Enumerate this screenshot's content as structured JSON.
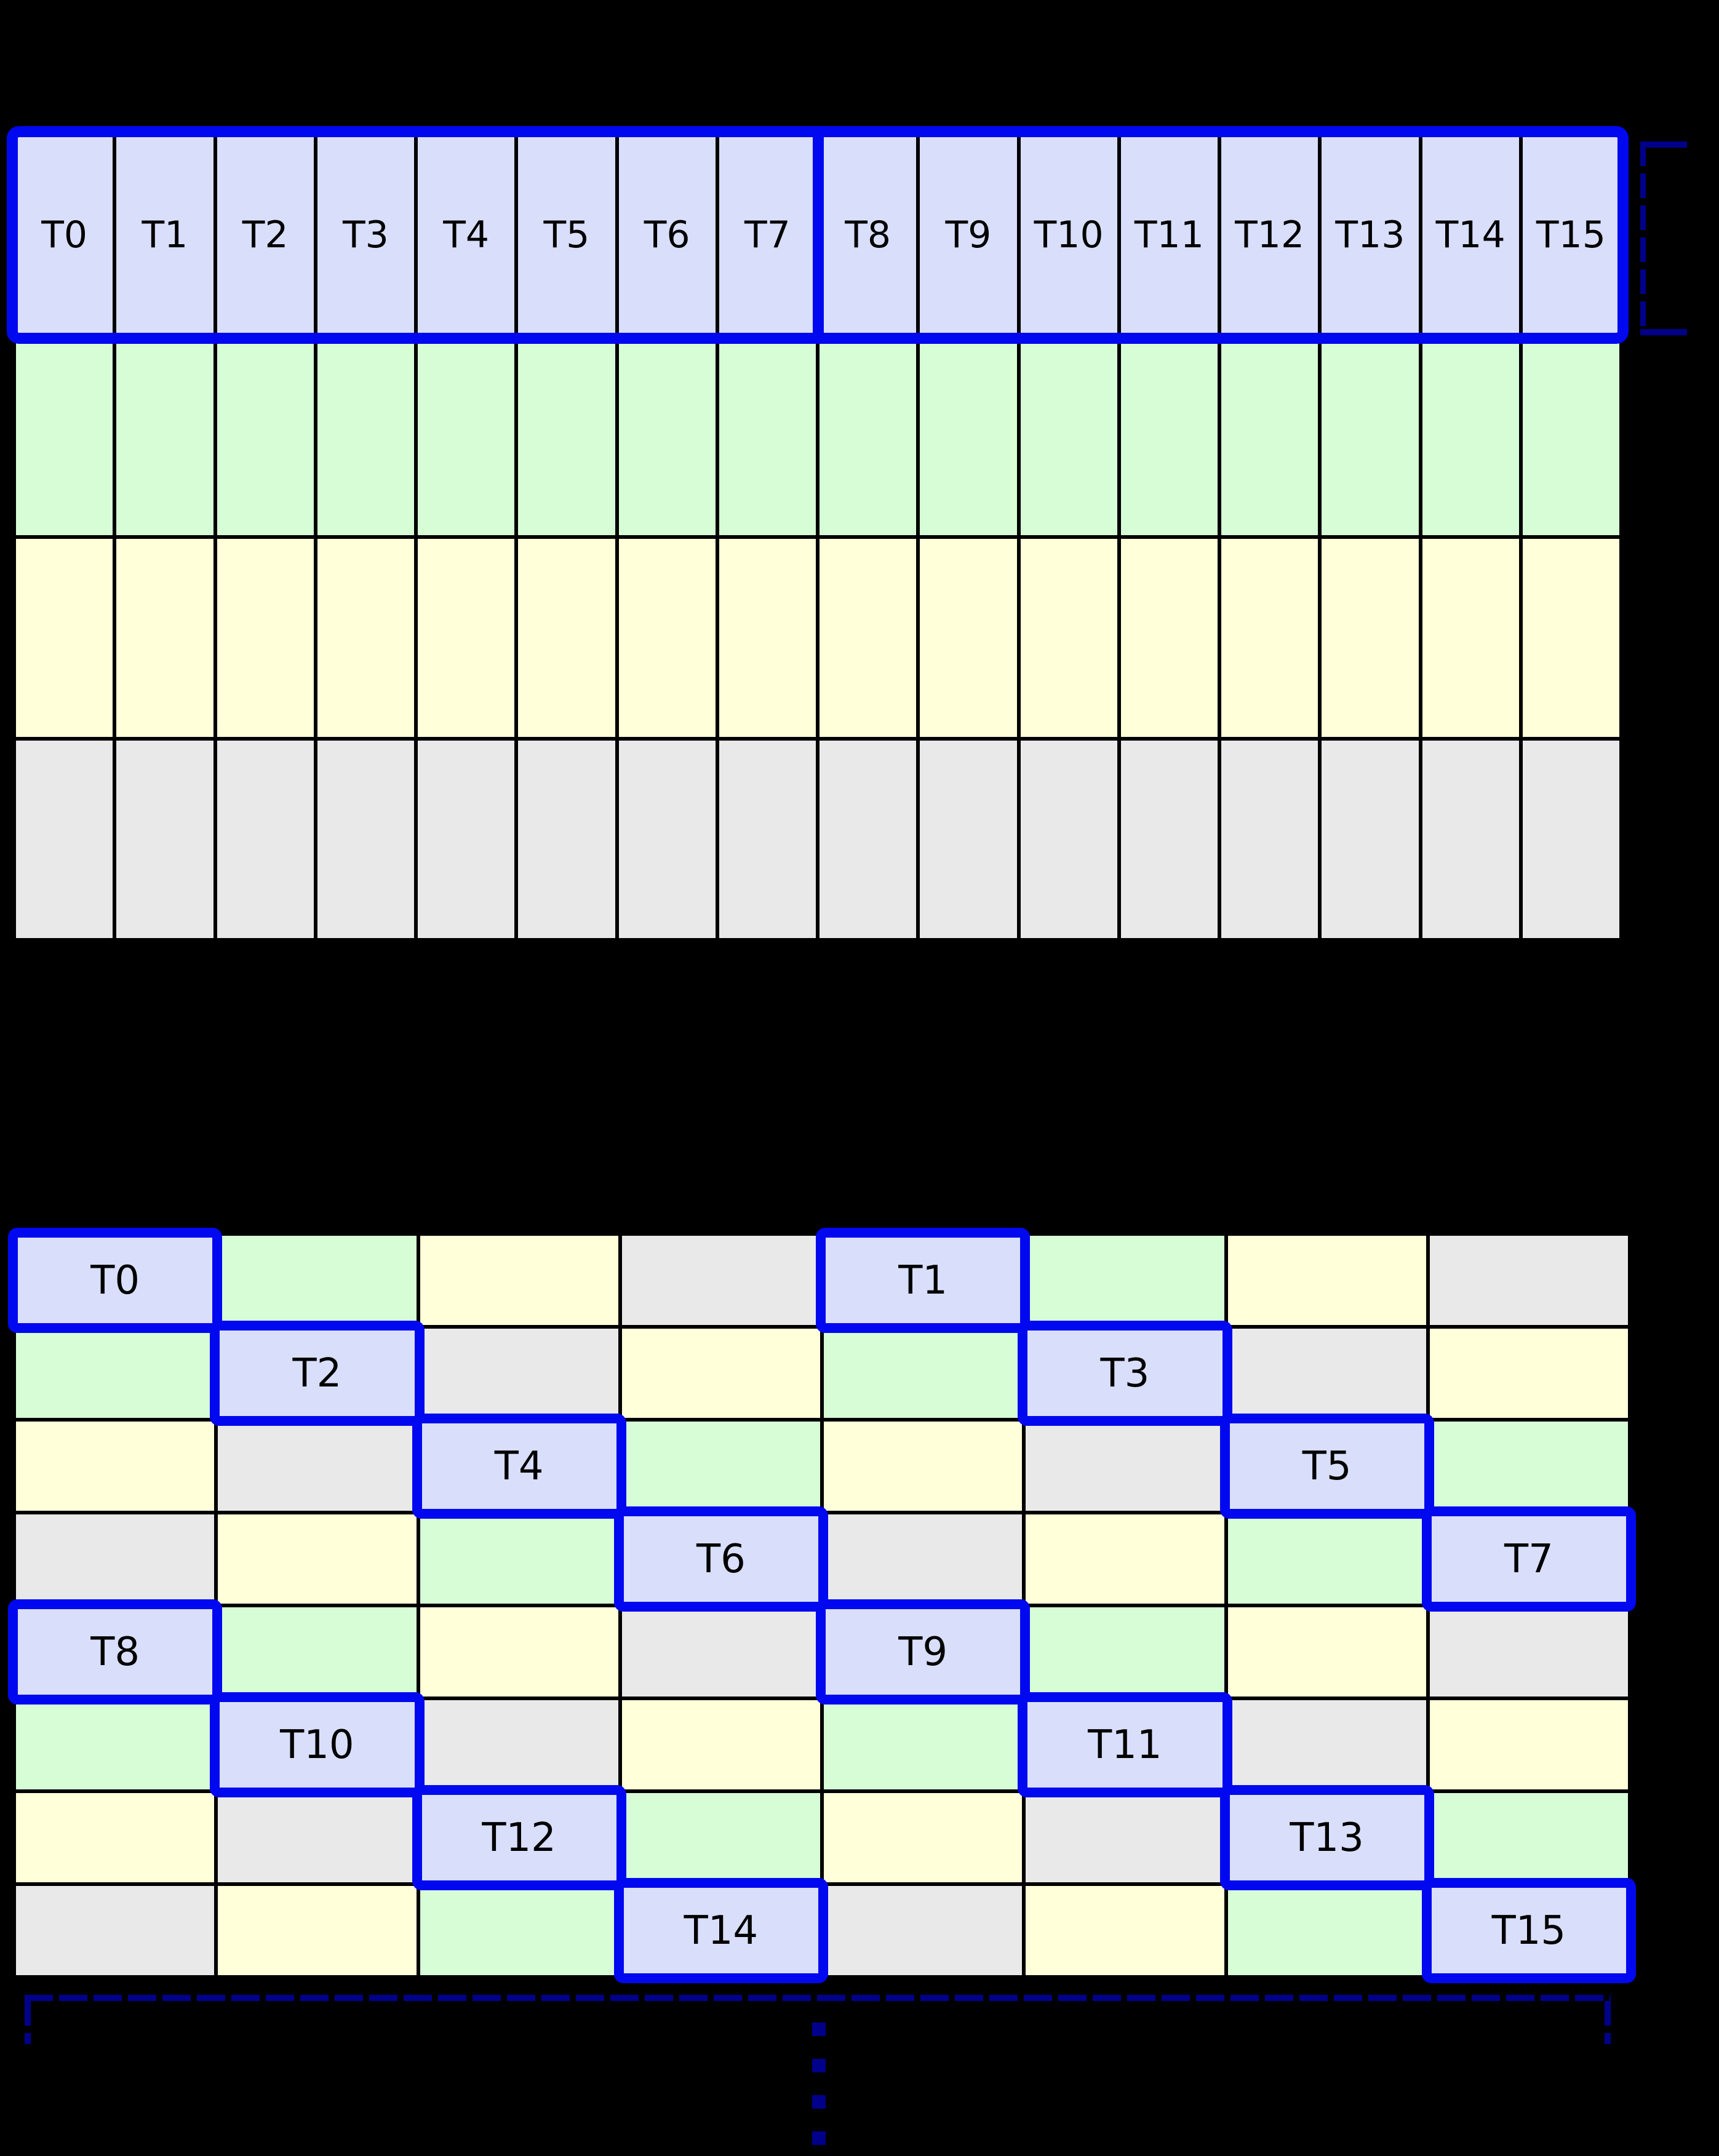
{
  "palette": {
    "background": "#000000",
    "grid_line": "#000000",
    "label_color": "#000000",
    "warp_border": "#0008f0",
    "bracket": "#00008b",
    "lavender": "#d9dffa",
    "green": "#d7fdd7",
    "yellow": "#ffffd9",
    "gray": "#e9e9e9"
  },
  "top_grid": {
    "columns": 16,
    "labels": [
      "T0",
      "T1",
      "T2",
      "T3",
      "T4",
      "T5",
      "T6",
      "T7",
      "T8",
      "T9",
      "T10",
      "T11",
      "T12",
      "T13",
      "T14",
      "T15"
    ],
    "row_colors": [
      "lavender",
      "green",
      "yellow",
      "gray"
    ],
    "warp_groups": [
      {
        "name": "warp-box-left",
        "first_label": "T0",
        "last_label": "T7"
      },
      {
        "name": "warp-box-right",
        "first_label": "T8",
        "last_label": "T15"
      }
    ]
  },
  "bottom_grid": {
    "columns": 8,
    "rows": [
      [
        {
          "color": "lavender",
          "label": "T0"
        },
        {
          "color": "green"
        },
        {
          "color": "yellow"
        },
        {
          "color": "gray"
        },
        {
          "color": "lavender",
          "label": "T1"
        },
        {
          "color": "green"
        },
        {
          "color": "yellow"
        },
        {
          "color": "gray"
        }
      ],
      [
        {
          "color": "green"
        },
        {
          "color": "lavender",
          "label": "T2"
        },
        {
          "color": "gray"
        },
        {
          "color": "yellow"
        },
        {
          "color": "green"
        },
        {
          "color": "lavender",
          "label": "T3"
        },
        {
          "color": "gray"
        },
        {
          "color": "yellow"
        }
      ],
      [
        {
          "color": "yellow"
        },
        {
          "color": "gray"
        },
        {
          "color": "lavender",
          "label": "T4"
        },
        {
          "color": "green"
        },
        {
          "color": "yellow"
        },
        {
          "color": "gray"
        },
        {
          "color": "lavender",
          "label": "T5"
        },
        {
          "color": "green"
        }
      ],
      [
        {
          "color": "gray"
        },
        {
          "color": "yellow"
        },
        {
          "color": "green"
        },
        {
          "color": "lavender",
          "label": "T6"
        },
        {
          "color": "gray"
        },
        {
          "color": "yellow"
        },
        {
          "color": "green"
        },
        {
          "color": "lavender",
          "label": "T7"
        }
      ],
      [
        {
          "color": "lavender",
          "label": "T8"
        },
        {
          "color": "green"
        },
        {
          "color": "yellow"
        },
        {
          "color": "gray"
        },
        {
          "color": "lavender",
          "label": "T9"
        },
        {
          "color": "green"
        },
        {
          "color": "yellow"
        },
        {
          "color": "gray"
        }
      ],
      [
        {
          "color": "green"
        },
        {
          "color": "lavender",
          "label": "T10"
        },
        {
          "color": "gray"
        },
        {
          "color": "yellow"
        },
        {
          "color": "green"
        },
        {
          "color": "lavender",
          "label": "T11"
        },
        {
          "color": "gray"
        },
        {
          "color": "yellow"
        }
      ],
      [
        {
          "color": "yellow"
        },
        {
          "color": "gray"
        },
        {
          "color": "lavender",
          "label": "T12"
        },
        {
          "color": "green"
        },
        {
          "color": "yellow"
        },
        {
          "color": "gray"
        },
        {
          "color": "lavender",
          "label": "T13"
        },
        {
          "color": "green"
        }
      ],
      [
        {
          "color": "gray"
        },
        {
          "color": "yellow"
        },
        {
          "color": "green"
        },
        {
          "color": "lavender",
          "label": "T14"
        },
        {
          "color": "gray"
        },
        {
          "color": "yellow"
        },
        {
          "color": "green"
        },
        {
          "color": "lavender",
          "label": "T15"
        }
      ]
    ]
  },
  "annotations": {
    "row_bracket": {
      "position": "right-of-top-grid",
      "style": "dashed",
      "color": "#00008b"
    },
    "width_bracket": {
      "position": "below-bottom-grid",
      "style": "dashed",
      "color": "#00008b"
    },
    "ellipsis": {
      "orientation": "vertical",
      "dot_count": 4,
      "color": "#00008b"
    }
  }
}
